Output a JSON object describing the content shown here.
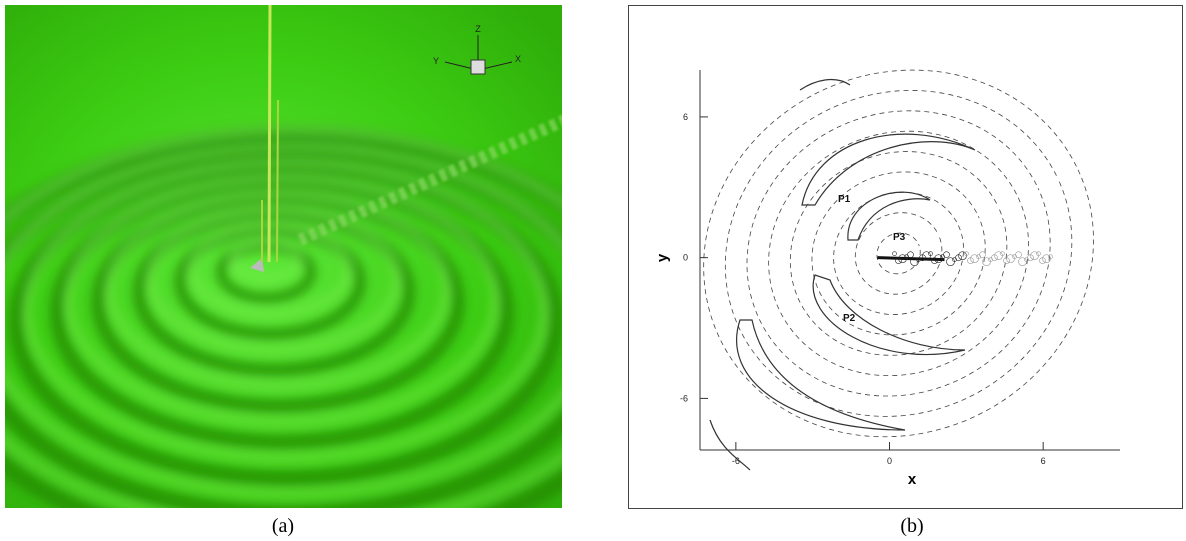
{
  "figure_a": {
    "label": "(a)",
    "axis_triad": {
      "x": "X",
      "y": "Y",
      "z": "Z"
    }
  },
  "chart_data": {
    "type": "contour",
    "label": "(b)",
    "xlabel": "x",
    "ylabel": "y",
    "xlim": [
      -7.4,
      9
    ],
    "ylim": [
      -8.2,
      8
    ],
    "xticks": [
      -6,
      0,
      6
    ],
    "yticks": [
      -6,
      0,
      6
    ],
    "annotations": [
      "P1",
      "P2",
      "P3"
    ]
  }
}
